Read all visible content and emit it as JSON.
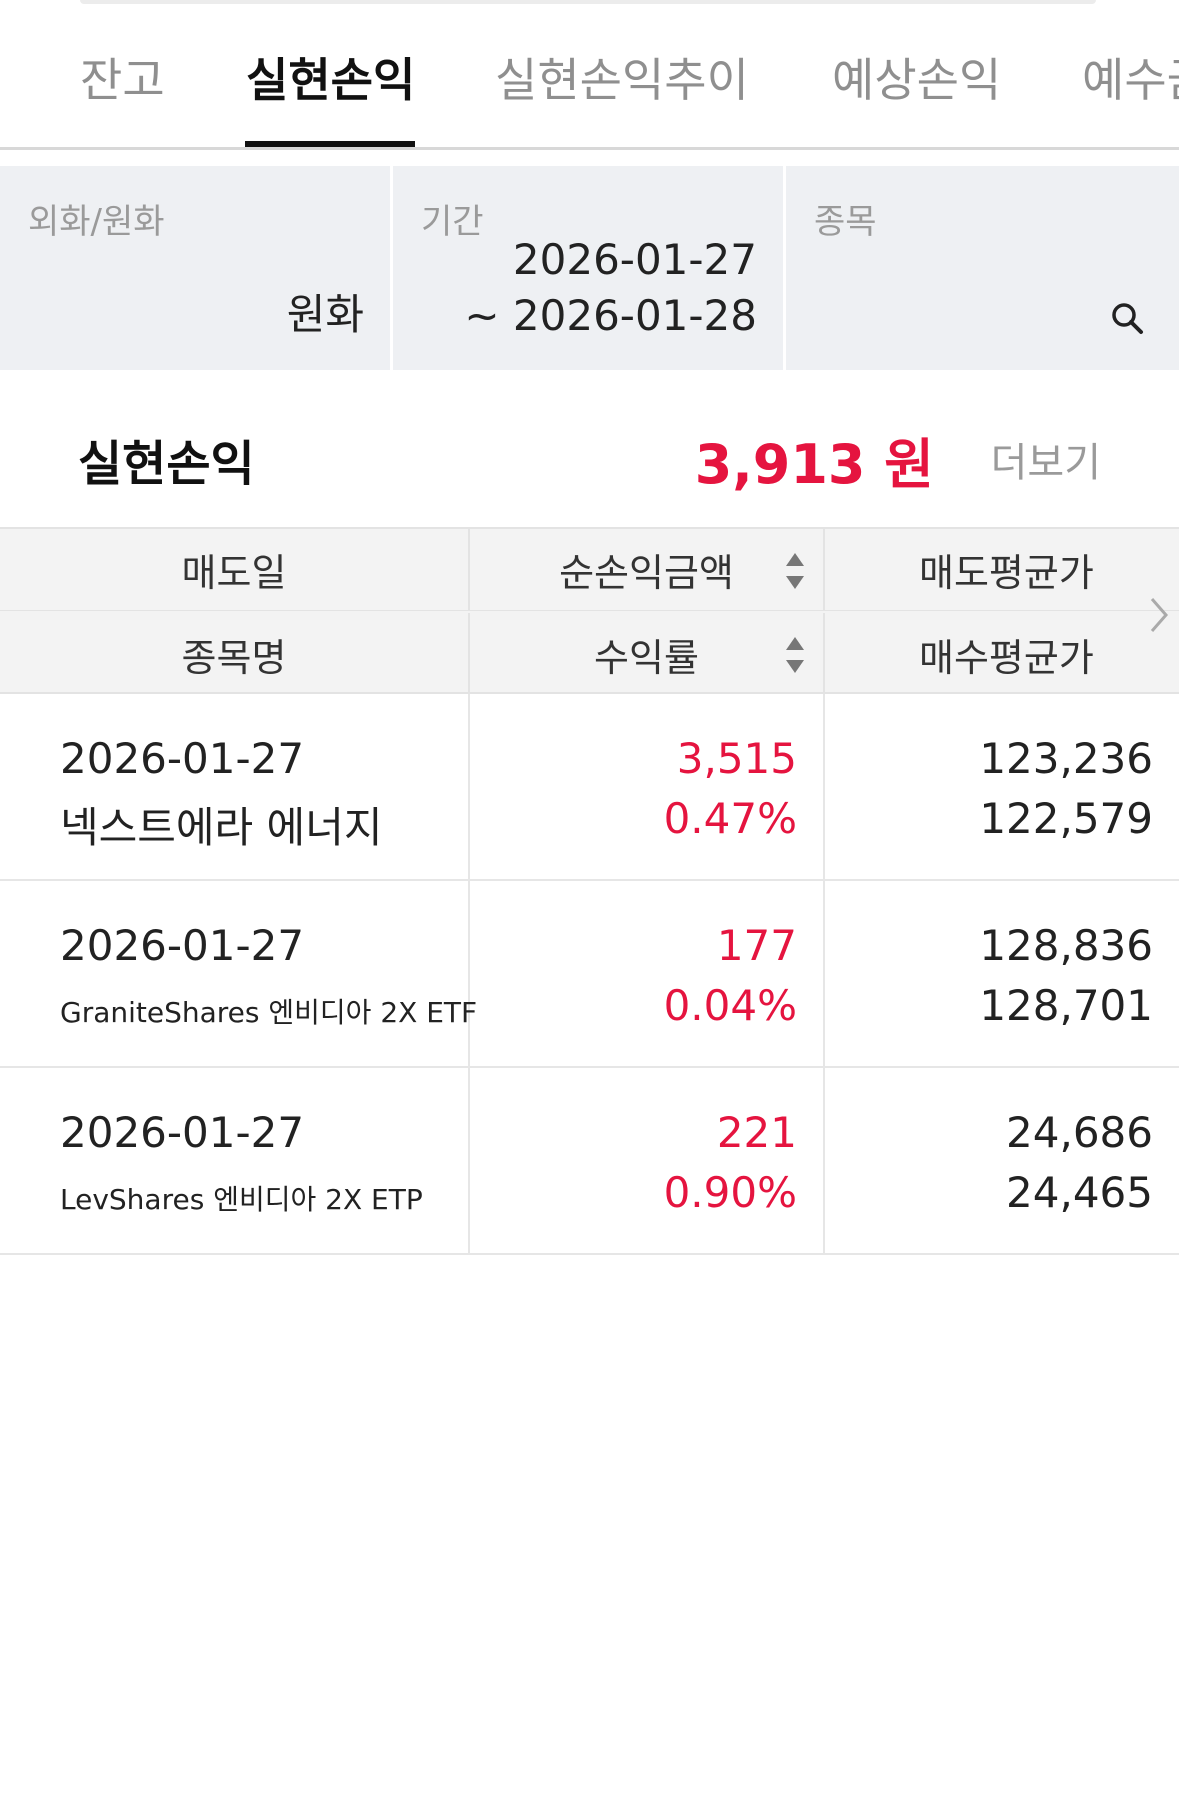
{
  "tabs": [
    {
      "label": "잔고",
      "active": false
    },
    {
      "label": "실현손익",
      "active": true
    },
    {
      "label": "실현손익추이",
      "active": false
    },
    {
      "label": "예상손익",
      "active": false
    },
    {
      "label": "예수금",
      "active": false
    }
  ],
  "filters": {
    "currency": {
      "label": "외화/원화",
      "value": "원화"
    },
    "period": {
      "label": "기간",
      "start": "2026-01-27",
      "end": "~ 2026-01-28"
    },
    "stock": {
      "label": "종목",
      "icon": "search-icon"
    }
  },
  "summary": {
    "title": "실현손익",
    "amount": "3,913 원",
    "more_label": "더보기"
  },
  "colors": {
    "profit": "#e5143f",
    "header_bg": "#f3f3f3",
    "filter_bg": "#eef0f3"
  },
  "table": {
    "headers": {
      "row1": [
        "매도일",
        "순손익금액",
        "매도평균가"
      ],
      "row2": [
        "종목명",
        "수익률",
        "매수평균가"
      ]
    },
    "rows": [
      {
        "sell_date": "2026-01-27",
        "name": "넥스트에라 에너지",
        "net_profit": "3,515",
        "return_rate": "0.47%",
        "sell_avg": "123,236",
        "buy_avg": "122,579"
      },
      {
        "sell_date": "2026-01-27",
        "name": "GraniteShares 엔비디아 2X ETF",
        "net_profit": "177",
        "return_rate": "0.04%",
        "sell_avg": "128,836",
        "buy_avg": "128,701"
      },
      {
        "sell_date": "2026-01-27",
        "name": "LevShares 엔비디아 2X ETP",
        "net_profit": "221",
        "return_rate": "0.90%",
        "sell_avg": "24,686",
        "buy_avg": "24,465"
      }
    ]
  }
}
